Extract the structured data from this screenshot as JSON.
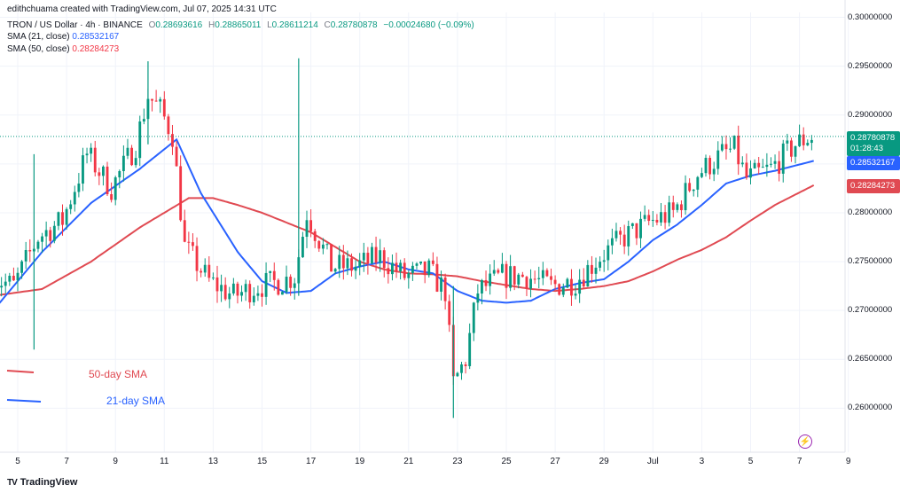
{
  "header": {
    "credit": "edithchuama created with TradingView.com, Jul 07, 2025 14:31 UTC",
    "symbol": "TRON / US Dollar · 4h · BINANCE",
    "open_label": "O",
    "open": "0.28693616",
    "high_label": "H",
    "high": "0.28865011",
    "low_label": "L",
    "low": "0.28611214",
    "close_label": "C",
    "close": "0.28780878",
    "change": "−0.00024680 (−0.09%)",
    "sma21_label": "SMA (21, close)",
    "sma21_value": "0.28532167",
    "sma50_label": "SMA (50, close)",
    "sma50_value": "0.28284273"
  },
  "badges": {
    "price": "0.28780878",
    "countdown": "01:28:43",
    "sma21": "0.28532167",
    "sma50": "0.28284273"
  },
  "legend": {
    "sma50": "50-day SMA",
    "sma21": "21-day SMA"
  },
  "footer": {
    "brand": "TradingView",
    "brand_mark": "TV"
  },
  "icons": {
    "flash": "flash-icon",
    "logo": "tradingview-logo-icon"
  },
  "colors": {
    "up": "#089981",
    "down": "#f23645",
    "sma21": "#2962ff",
    "sma50": "#e04a52",
    "current_price": "#089981"
  },
  "chart_data": {
    "type": "candlestick",
    "price_axis_ticks": [
      "0.30000000",
      "0.29500000",
      "0.29000000",
      "0.28500000",
      "0.28000000",
      "0.27500000",
      "0.27000000",
      "0.26500000",
      "0.26000000"
    ],
    "ylim": [
      0.2555,
      0.3005
    ],
    "x_ticks": [
      "5",
      "7",
      "9",
      "11",
      "13",
      "15",
      "17",
      "19",
      "21",
      "23",
      "25",
      "27",
      "29",
      "Jul",
      "3",
      "5",
      "7",
      "9"
    ],
    "x_ticks_dates": [
      "2025-06-05",
      "2025-06-07",
      "2025-06-09",
      "2025-06-11",
      "2025-06-13",
      "2025-06-15",
      "2025-06-17",
      "2025-06-19",
      "2025-06-21",
      "2025-06-23",
      "2025-06-25",
      "2025-06-27",
      "2025-06-29",
      "2025-07-01",
      "2025-07-03",
      "2025-07-05",
      "2025-07-07",
      "2025-07-09"
    ],
    "interval": "4h",
    "last_price": 0.28780878,
    "sma21_last": 0.28532167,
    "sma50_last": 0.28284273,
    "price_anchors": [
      [
        "2025-06-04",
        0.2735
      ],
      [
        "2025-06-05",
        0.2725
      ],
      [
        "2025-06-06",
        0.2775
      ],
      [
        "2025-06-07",
        0.2792
      ],
      [
        "2025-06-08",
        0.286
      ],
      [
        "2025-06-09",
        0.2825
      ],
      [
        "2025-06-10",
        0.287
      ],
      [
        "2025-06-10 12:00",
        0.292
      ],
      [
        "2025-06-11",
        0.2905
      ],
      [
        "2025-06-11 12:00",
        0.288
      ],
      [
        "2025-06-12",
        0.2765
      ],
      [
        "2025-06-13",
        0.273
      ],
      [
        "2025-06-14",
        0.2715
      ],
      [
        "2025-06-15",
        0.2725
      ],
      [
        "2025-06-16",
        0.273
      ],
      [
        "2025-06-16 12:00",
        0.2735
      ],
      [
        "2025-06-17",
        0.28
      ],
      [
        "2025-06-18",
        0.2745
      ],
      [
        "2025-06-19",
        0.2745
      ],
      [
        "2025-06-20",
        0.2755
      ],
      [
        "2025-06-21",
        0.2735
      ],
      [
        "2025-06-22",
        0.274
      ],
      [
        "2025-06-22 16:00",
        0.272
      ],
      [
        "2025-06-23",
        0.2625
      ],
      [
        "2025-06-23 12:00",
        0.265
      ],
      [
        "2025-06-24",
        0.272
      ],
      [
        "2025-06-25",
        0.2735
      ],
      [
        "2025-06-26",
        0.2735
      ],
      [
        "2025-06-27",
        0.2725
      ],
      [
        "2025-06-28",
        0.273
      ],
      [
        "2025-06-29",
        0.2755
      ],
      [
        "2025-06-30",
        0.2775
      ],
      [
        "2025-07-01",
        0.279
      ],
      [
        "2025-07-02",
        0.28
      ],
      [
        "2025-07-03",
        0.284
      ],
      [
        "2025-07-04",
        0.286
      ],
      [
        "2025-07-04 12:00",
        0.2865
      ],
      [
        "2025-07-05",
        0.2835
      ],
      [
        "2025-07-06",
        0.2845
      ],
      [
        "2025-07-07",
        0.287
      ],
      [
        "2025-07-07 14:31",
        0.28780878
      ]
    ],
    "sma21_anchors": [
      [
        "2025-06-04",
        0.27
      ],
      [
        "2025-06-06",
        0.276
      ],
      [
        "2025-06-08",
        0.281
      ],
      [
        "2025-06-10",
        0.2845
      ],
      [
        "2025-06-11 12:00",
        0.2875
      ],
      [
        "2025-06-12 12:00",
        0.282
      ],
      [
        "2025-06-14",
        0.276
      ],
      [
        "2025-06-15",
        0.273
      ],
      [
        "2025-06-16",
        0.2718
      ],
      [
        "2025-06-17",
        0.272
      ],
      [
        "2025-06-18",
        0.2738
      ],
      [
        "2025-06-19",
        0.2745
      ],
      [
        "2025-06-20",
        0.275
      ],
      [
        "2025-06-21",
        0.2742
      ],
      [
        "2025-06-22",
        0.2738
      ],
      [
        "2025-06-23",
        0.272
      ],
      [
        "2025-06-24",
        0.271
      ],
      [
        "2025-06-25",
        0.2708
      ],
      [
        "2025-06-26",
        0.271
      ],
      [
        "2025-06-27",
        0.2722
      ],
      [
        "2025-06-28",
        0.2728
      ],
      [
        "2025-06-29",
        0.2732
      ],
      [
        "2025-06-30",
        0.275
      ],
      [
        "2025-07-01",
        0.2772
      ],
      [
        "2025-07-02",
        0.2788
      ],
      [
        "2025-07-03",
        0.2808
      ],
      [
        "2025-07-04",
        0.283
      ],
      [
        "2025-07-05",
        0.2838
      ],
      [
        "2025-07-06",
        0.2843
      ],
      [
        "2025-07-07 14:31",
        0.28532167
      ]
    ],
    "sma50_anchors": [
      [
        "2025-06-04",
        0.2715
      ],
      [
        "2025-06-06",
        0.2722
      ],
      [
        "2025-06-08",
        0.275
      ],
      [
        "2025-06-10",
        0.2785
      ],
      [
        "2025-06-12",
        0.2815
      ],
      [
        "2025-06-13",
        0.2815
      ],
      [
        "2025-06-14",
        0.2808
      ],
      [
        "2025-06-15",
        0.28
      ],
      [
        "2025-06-16",
        0.279
      ],
      [
        "2025-06-17",
        0.278
      ],
      [
        "2025-06-18",
        0.2765
      ],
      [
        "2025-06-19",
        0.275
      ],
      [
        "2025-06-20",
        0.2742
      ],
      [
        "2025-06-21",
        0.2738
      ],
      [
        "2025-06-22",
        0.2737
      ],
      [
        "2025-06-23",
        0.2735
      ],
      [
        "2025-06-24",
        0.273
      ],
      [
        "2025-06-25",
        0.2726
      ],
      [
        "2025-06-26",
        0.2722
      ],
      [
        "2025-06-27",
        0.272
      ],
      [
        "2025-06-28",
        0.2722
      ],
      [
        "2025-06-29",
        0.2725
      ],
      [
        "2025-06-30",
        0.273
      ],
      [
        "2025-07-01",
        0.274
      ],
      [
        "2025-07-02",
        0.2752
      ],
      [
        "2025-07-03",
        0.2762
      ],
      [
        "2025-07-04",
        0.2775
      ],
      [
        "2025-07-05",
        0.2792
      ],
      [
        "2025-07-06",
        0.2808
      ],
      [
        "2025-07-07 14:31",
        0.28284273
      ]
    ],
    "spikes": [
      {
        "time": "2025-06-05 16:00",
        "high": 0.286,
        "low": 0.266
      },
      {
        "time": "2025-06-10 08:00",
        "high": 0.2955,
        "low": 0.287
      },
      {
        "time": "2025-06-16 12:00",
        "high": 0.2958,
        "low": 0.2715
      },
      {
        "time": "2025-06-22 20:00",
        "high": 0.2725,
        "low": 0.259
      }
    ]
  }
}
